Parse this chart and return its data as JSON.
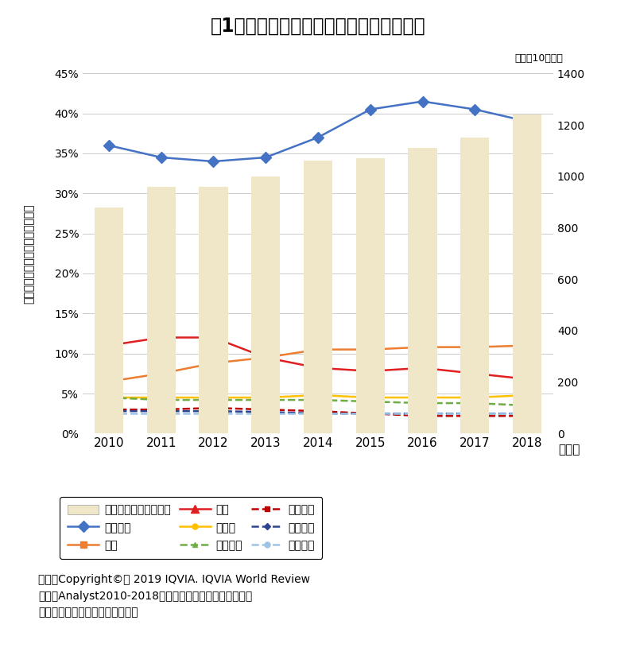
{
  "title": "図1　世界における各国市場のシェア推移",
  "years": [
    2010,
    2011,
    2012,
    2013,
    2014,
    2015,
    2016,
    2017,
    2018
  ],
  "bar_values": [
    880,
    960,
    960,
    1000,
    1060,
    1070,
    1110,
    1150,
    1240
  ],
  "america": [
    36.0,
    34.5,
    34.0,
    34.5,
    37.0,
    40.5,
    41.5,
    40.5,
    39.0
  ],
  "china": [
    6.5,
    7.5,
    8.8,
    9.5,
    10.5,
    10.5,
    10.8,
    10.8,
    11.0
  ],
  "japan": [
    11.0,
    12.0,
    12.0,
    9.5,
    8.2,
    7.8,
    8.2,
    7.5,
    6.8
  ],
  "germany": [
    4.5,
    4.5,
    4.5,
    4.5,
    4.8,
    4.5,
    4.5,
    4.5,
    4.8
  ],
  "france": [
    4.5,
    4.2,
    4.2,
    4.2,
    4.2,
    4.0,
    3.8,
    3.8,
    3.5
  ],
  "brazil": [
    3.0,
    3.0,
    3.2,
    3.0,
    2.8,
    2.5,
    2.2,
    2.2,
    2.2
  ],
  "italy": [
    2.8,
    2.8,
    2.8,
    2.7,
    2.5,
    2.5,
    2.5,
    2.5,
    2.5
  ],
  "uk": [
    2.5,
    2.5,
    2.5,
    2.5,
    2.5,
    2.5,
    2.5,
    2.5,
    2.5
  ],
  "bar_color": "#f0e6c8",
  "america_color": "#4472c4",
  "china_color": "#ed7d31",
  "japan_color": "#e02020",
  "germany_color": "#ffc000",
  "france_color": "#70ad47",
  "brazil_color": "#c00000",
  "italy_color": "#2e4490",
  "uk_color": "#9dc3e6",
  "ylabel_left": "世界市場に占める各国市場シェア",
  "ylabel_right": "単位：10億ドル",
  "xlabel": "（年）",
  "ylim_left": [
    0,
    0.45
  ],
  "ylim_right": [
    0,
    1400
  ],
  "yticks_left": [
    0,
    0.05,
    0.1,
    0.15,
    0.2,
    0.25,
    0.3,
    0.35,
    0.4,
    0.45
  ],
  "yticks_right": [
    0,
    200,
    400,
    600,
    800,
    1000,
    1200,
    1400
  ],
  "source_line1": "出所：Copyright©　 2019 IQVIA. IQVIA World Review",
  "source_line2": "　　　Analyst2010-2018をもとに医薬産業政策研究所に",
  "source_line3": "　　　て作成　（無断転載禁止）",
  "legend_labels": [
    "世界市場合計（右軸）",
    "アメリカ",
    "中国",
    "日本",
    "ドイツ",
    "フランス",
    "ブラジル",
    "イタリア",
    "イギリス"
  ]
}
